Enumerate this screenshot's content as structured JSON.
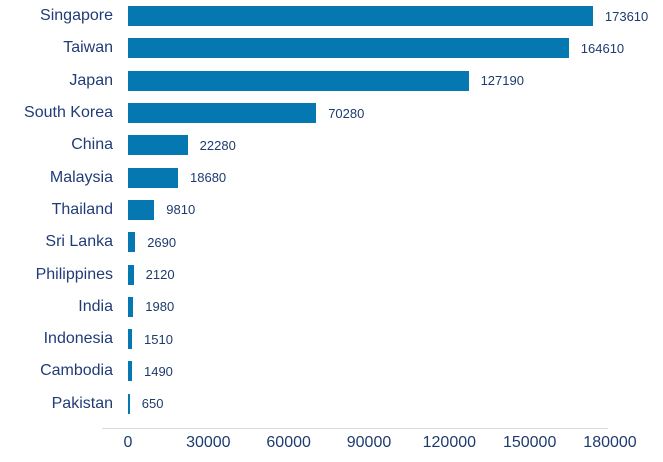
{
  "chart_data": {
    "type": "bar",
    "orientation": "horizontal",
    "categories": [
      "Singapore",
      "Taiwan",
      "Japan",
      "South Korea",
      "China",
      "Malaysia",
      "Thailand",
      "Sri Lanka",
      "Philippines",
      "India",
      "Indonesia",
      "Cambodia",
      "Pakistan"
    ],
    "values": [
      173610,
      164610,
      127190,
      70280,
      22280,
      18680,
      9810,
      2690,
      2120,
      1980,
      1510,
      1490,
      650
    ],
    "value_labels": [
      "173610",
      "164610",
      "127190",
      "70280",
      "22280",
      "18680",
      "9810",
      "2690",
      "2120",
      "1980",
      "1510",
      "1490",
      "650"
    ],
    "xlim": [
      0,
      180000
    ],
    "xticks": [
      0,
      30000,
      60000,
      90000,
      120000,
      150000,
      180000
    ],
    "xtick_labels": [
      "0",
      "30000",
      "60000",
      "90000",
      "120000",
      "150000",
      "180000"
    ],
    "grid": false,
    "legend": false,
    "colors": {
      "bar": "#0578b1",
      "category_label": "#203c77",
      "value_label": "#1d3b6e",
      "tick_label": "#1d3b6e",
      "axis_line": "#d9d9d9",
      "background": "#ffffff"
    }
  }
}
